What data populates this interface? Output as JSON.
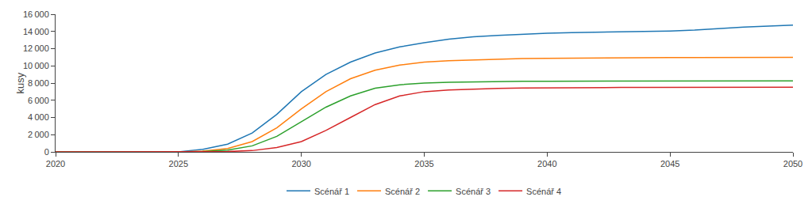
{
  "chart_data": {
    "type": "line",
    "ylabel": "kusy",
    "x": [
      2020,
      2021,
      2022,
      2023,
      2024,
      2025,
      2026,
      2027,
      2028,
      2029,
      2030,
      2031,
      2032,
      2033,
      2034,
      2035,
      2036,
      2037,
      2038,
      2039,
      2040,
      2041,
      2042,
      2043,
      2044,
      2045,
      2046,
      2047,
      2048,
      2049,
      2050
    ],
    "series": [
      {
        "name": "Scénář 1",
        "values": [
          0,
          0,
          0,
          0,
          0,
          10,
          309,
          900,
          2200,
          4362,
          7000,
          9000,
          10435,
          11500,
          12200,
          12700,
          13100,
          13371,
          13550,
          13700,
          13800,
          13870,
          13920,
          13950,
          13967,
          14050,
          14150,
          14350,
          14500,
          14620,
          14740
        ]
      },
      {
        "name": "Scénář 2",
        "values": [
          0,
          0,
          0,
          0,
          0,
          5,
          100,
          400,
          1200,
          2800,
          5000,
          7000,
          8500,
          9500,
          10100,
          10435,
          10600,
          10700,
          10780,
          10840,
          10880,
          10910,
          10930,
          10945,
          10955,
          10965,
          10975,
          10985,
          10990,
          10995,
          11000
        ]
      },
      {
        "name": "Scénář 3",
        "values": [
          0,
          0,
          0,
          0,
          0,
          2,
          50,
          200,
          700,
          1800,
          3500,
          5200,
          6500,
          7400,
          7800,
          8000,
          8100,
          8150,
          8180,
          8200,
          8215,
          8225,
          8232,
          8238,
          8242,
          8246,
          8250,
          8255,
          8258,
          8260,
          8262
        ]
      },
      {
        "name": "Scénář 4",
        "values": [
          0,
          0,
          0,
          0,
          0,
          0,
          10,
          40,
          150,
          500,
          1200,
          2500,
          4000,
          5500,
          6500,
          7000,
          7200,
          7300,
          7380,
          7420,
          7450,
          7470,
          7480,
          7488,
          7494,
          7498,
          7502,
          7506,
          7510,
          7513,
          7516
        ]
      }
    ],
    "xlim": [
      2020,
      2050
    ],
    "ylim": [
      0,
      16000
    ],
    "xticks": [
      2020,
      2025,
      2030,
      2035,
      2040,
      2045,
      2050
    ],
    "yticks": [
      0,
      {
        "value": 2000,
        "label": "2 000"
      },
      {
        "value": 4000,
        "label": "4 000"
      },
      {
        "value": 6000,
        "label": "6 000"
      },
      {
        "value": 8000,
        "label": "8 000"
      },
      {
        "value": 10000,
        "label": "10 000"
      },
      {
        "value": 12000,
        "label": "12 000"
      },
      {
        "value": 14000,
        "label": "14 000"
      },
      {
        "value": 16000,
        "label": "16 000"
      }
    ],
    "grid": false,
    "legend": "bottom"
  }
}
